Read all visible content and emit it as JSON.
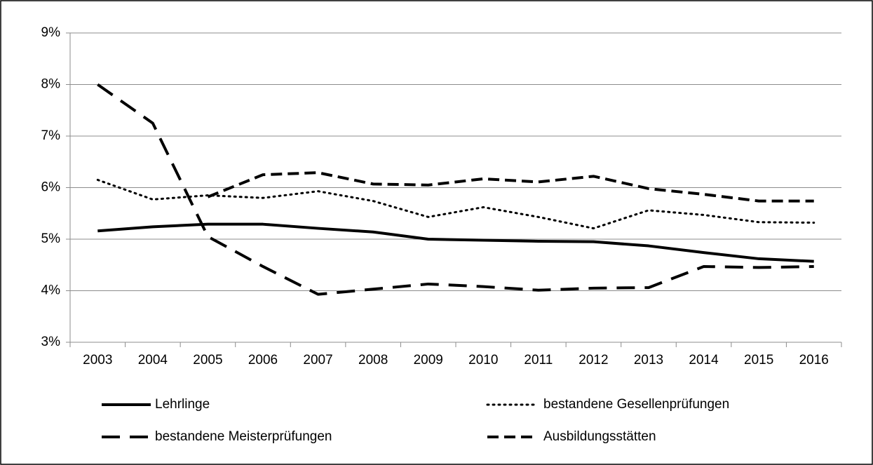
{
  "chart_data": {
    "type": "line",
    "categories": [
      "2003",
      "2004",
      "2005",
      "2006",
      "2007",
      "2008",
      "2009",
      "2010",
      "2011",
      "2012",
      "2013",
      "2014",
      "2015",
      "2016"
    ],
    "series": [
      {
        "name": "Lehrlinge",
        "color": "#000000",
        "style": "solid",
        "values": [
          5.16,
          5.24,
          5.29,
          5.29,
          5.21,
          5.14,
          5.0,
          4.98,
          4.96,
          4.95,
          4.87,
          4.74,
          4.62,
          4.57
        ]
      },
      {
        "name": "bestandene Gesellenprüfungen",
        "color": "#000000",
        "style": "dotted",
        "values": [
          6.15,
          5.77,
          5.85,
          5.8,
          5.93,
          5.74,
          5.43,
          5.62,
          5.43,
          5.21,
          5.56,
          5.47,
          5.33,
          5.32
        ]
      },
      {
        "name": "bestandene Meisterprüfungen",
        "color": "#000000",
        "style": "long-dash",
        "values": [
          8.0,
          7.25,
          5.05,
          4.47,
          3.93,
          4.03,
          4.13,
          4.08,
          4.01,
          4.05,
          4.06,
          4.47,
          4.45,
          4.47
        ]
      },
      {
        "name": "Ausbildungsstätten",
        "color": "#000000",
        "style": "dash",
        "values": [
          null,
          null,
          5.82,
          6.25,
          6.29,
          6.07,
          6.05,
          6.17,
          6.11,
          6.22,
          5.98,
          5.87,
          5.74,
          5.74
        ]
      }
    ],
    "ylim": [
      3,
      9
    ],
    "yticks": [
      {
        "value": 3,
        "label": "3%"
      },
      {
        "value": 4,
        "label": "4%"
      },
      {
        "value": 5,
        "label": "5%"
      },
      {
        "value": 6,
        "label": "6%"
      },
      {
        "value": 7,
        "label": "7%"
      },
      {
        "value": 8,
        "label": "8%"
      },
      {
        "value": 9,
        "label": "9%"
      }
    ],
    "grid": true,
    "legend": "bottom"
  }
}
